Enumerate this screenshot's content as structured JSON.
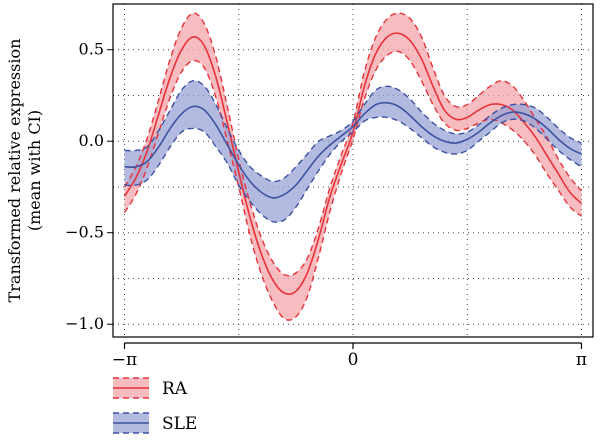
{
  "chart_data": {
    "type": "line",
    "title": "",
    "xlabel": "",
    "ylabel_line1": "Transformed relative expression",
    "ylabel_line2": "(mean with CI)",
    "xlim": [
      -3.3,
      3.3
    ],
    "ylim": [
      -1.07,
      0.75
    ],
    "x_ticks": [
      {
        "value": -3.14159,
        "label": "−π"
      },
      {
        "value": 0,
        "label": "0"
      },
      {
        "value": 3.14159,
        "label": "π"
      }
    ],
    "y_ticks": [
      {
        "value": 0.5,
        "label": "0.5"
      },
      {
        "value": 0.0,
        "label": "0.0"
      },
      {
        "value": -0.5,
        "label": "−0.5"
      },
      {
        "value": -1.0,
        "label": "−1.0"
      }
    ],
    "grid": true,
    "legend_position": "bottom-left",
    "x": [
      -3.1416,
      -2.9845,
      -2.8274,
      -2.6704,
      -2.5133,
      -2.3562,
      -2.1991,
      -2.042,
      -1.885,
      -1.7279,
      -1.5708,
      -1.4137,
      -1.2566,
      -1.0996,
      -0.9425,
      -0.7854,
      -0.6283,
      -0.4712,
      -0.3142,
      -0.1571,
      0.0,
      0.1571,
      0.3142,
      0.4712,
      0.6283,
      0.7854,
      0.9425,
      1.0996,
      1.2566,
      1.4137,
      1.5708,
      1.7279,
      1.885,
      2.042,
      2.1991,
      2.3562,
      2.5133,
      2.6704,
      2.8274,
      2.9845,
      3.1416
    ],
    "series": [
      {
        "name": "RA",
        "color": "#e8333a",
        "fill": "#f4a6aa",
        "mean": [
          -0.3,
          -0.2,
          -0.05,
          0.15,
          0.35,
          0.5,
          0.57,
          0.52,
          0.35,
          0.1,
          -0.17,
          -0.42,
          -0.62,
          -0.76,
          -0.83,
          -0.82,
          -0.72,
          -0.53,
          -0.3,
          -0.12,
          0.05,
          0.3,
          0.48,
          0.57,
          0.59,
          0.55,
          0.45,
          0.3,
          0.17,
          0.12,
          0.13,
          0.17,
          0.2,
          0.2,
          0.17,
          0.1,
          0.02,
          -0.08,
          -0.18,
          -0.28,
          -0.34
        ],
        "upper": [
          -0.25,
          -0.14,
          0.02,
          0.23,
          0.45,
          0.62,
          0.7,
          0.64,
          0.46,
          0.19,
          -0.1,
          -0.34,
          -0.53,
          -0.66,
          -0.73,
          -0.72,
          -0.64,
          -0.47,
          -0.25,
          -0.07,
          0.1,
          0.38,
          0.57,
          0.67,
          0.7,
          0.67,
          0.57,
          0.4,
          0.25,
          0.19,
          0.2,
          0.25,
          0.3,
          0.33,
          0.3,
          0.22,
          0.12,
          0.02,
          -0.1,
          -0.2,
          -0.27
        ],
        "lower": [
          -0.39,
          -0.29,
          -0.14,
          0.05,
          0.24,
          0.38,
          0.44,
          0.4,
          0.24,
          0.0,
          -0.25,
          -0.52,
          -0.73,
          -0.88,
          -0.97,
          -0.96,
          -0.85,
          -0.63,
          -0.38,
          -0.17,
          0.01,
          0.23,
          0.39,
          0.47,
          0.49,
          0.44,
          0.33,
          0.2,
          0.1,
          0.06,
          0.07,
          0.1,
          0.12,
          0.1,
          0.06,
          0.0,
          -0.08,
          -0.18,
          -0.27,
          -0.36,
          -0.41
        ]
      },
      {
        "name": "SLE",
        "color": "#3d52a1",
        "fill": "#9aa3d6",
        "mean": [
          -0.14,
          -0.14,
          -0.11,
          -0.03,
          0.07,
          0.15,
          0.19,
          0.17,
          0.09,
          -0.02,
          -0.13,
          -0.22,
          -0.28,
          -0.31,
          -0.29,
          -0.24,
          -0.16,
          -0.08,
          -0.02,
          0.03,
          0.08,
          0.15,
          0.2,
          0.21,
          0.19,
          0.14,
          0.08,
          0.03,
          0.0,
          -0.01,
          0.01,
          0.05,
          0.1,
          0.14,
          0.16,
          0.15,
          0.12,
          0.07,
          0.01,
          -0.04,
          -0.07
        ],
        "upper": [
          -0.05,
          -0.05,
          -0.03,
          0.06,
          0.17,
          0.28,
          0.33,
          0.3,
          0.2,
          0.07,
          -0.05,
          -0.14,
          -0.19,
          -0.22,
          -0.2,
          -0.14,
          -0.07,
          0.0,
          0.03,
          0.06,
          0.11,
          0.2,
          0.28,
          0.3,
          0.28,
          0.23,
          0.16,
          0.1,
          0.06,
          0.04,
          0.05,
          0.09,
          0.14,
          0.18,
          0.2,
          0.2,
          0.18,
          0.13,
          0.07,
          0.02,
          -0.01
        ],
        "lower": [
          -0.24,
          -0.24,
          -0.21,
          -0.13,
          -0.03,
          0.05,
          0.07,
          0.05,
          -0.03,
          -0.12,
          -0.24,
          -0.33,
          -0.4,
          -0.44,
          -0.43,
          -0.36,
          -0.26,
          -0.16,
          -0.07,
          0.0,
          0.05,
          0.11,
          0.13,
          0.13,
          0.11,
          0.07,
          0.02,
          -0.03,
          -0.06,
          -0.07,
          -0.05,
          0.0,
          0.05,
          0.1,
          0.12,
          0.11,
          0.07,
          0.01,
          -0.05,
          -0.1,
          -0.14
        ]
      }
    ]
  }
}
